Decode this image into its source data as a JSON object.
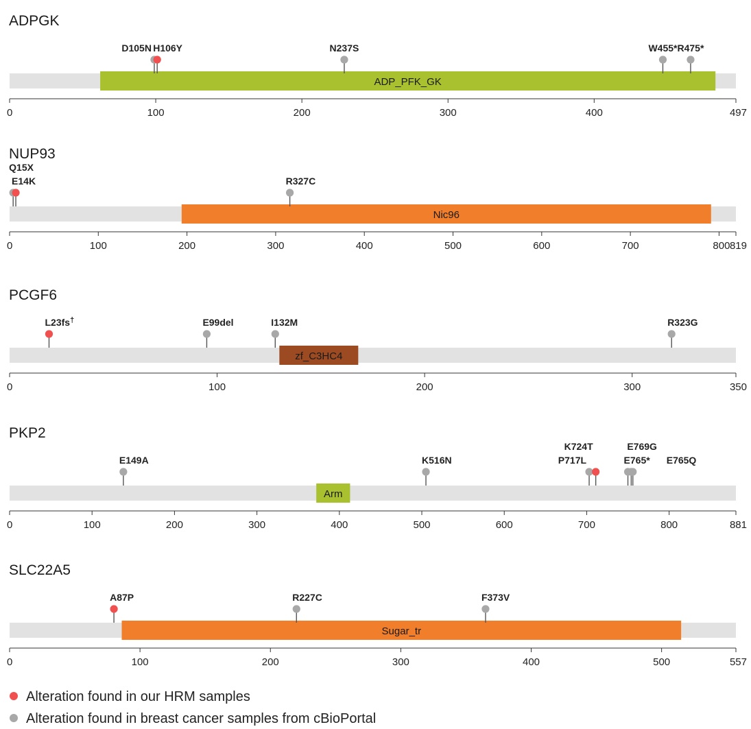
{
  "colors": {
    "hrm": "#f05050",
    "cbioportal": "#a8a8a8",
    "backbone": "#e2e2e2",
    "stem": "#555555",
    "axis": "#333333"
  },
  "genes": [
    {
      "name": "ADPGK",
      "length": 497,
      "ticks": [
        0,
        100,
        200,
        300,
        400,
        497
      ],
      "domains": [
        {
          "label": "ADP_PFK_GK",
          "start": 62,
          "end": 483,
          "color": "#a9c12f"
        }
      ],
      "mutations": [
        {
          "label": "D105N",
          "pos": 99,
          "source": "cbioportal",
          "row": 0,
          "anchor": "end"
        },
        {
          "label": "H106Y",
          "pos": 101,
          "source": "hrm",
          "row": 0,
          "anchor": "start"
        },
        {
          "label": "N237S",
          "pos": 229,
          "source": "cbioportal",
          "row": 0,
          "anchor": "middle"
        },
        {
          "label": "W455*",
          "pos": 447,
          "source": "cbioportal",
          "row": 0,
          "anchor": "middle"
        },
        {
          "label": "R475*",
          "pos": 466,
          "source": "cbioportal",
          "row": 0,
          "anchor": "middle"
        }
      ]
    },
    {
      "name": "NUP93",
      "length": 819,
      "ticks": [
        0,
        100,
        200,
        300,
        400,
        500,
        600,
        700,
        800,
        819
      ],
      "domains": [
        {
          "label": "Nic96",
          "start": 194,
          "end": 791,
          "color": "#f07e2a"
        }
      ],
      "mutations": [
        {
          "label": "Q15X",
          "pos": 4,
          "source": "cbioportal",
          "row": 1,
          "anchor": "start"
        },
        {
          "label": "E14K",
          "pos": 7,
          "source": "hrm",
          "row": 0,
          "anchor": "start"
        },
        {
          "label": "R327C",
          "pos": 316,
          "source": "cbioportal",
          "row": 0,
          "anchor": "start"
        }
      ]
    },
    {
      "name": "PCGF6",
      "length": 350,
      "ticks": [
        0,
        100,
        200,
        300,
        350
      ],
      "domains": [
        {
          "label": "zf_C3HC4",
          "start": 130,
          "end": 168,
          "color": "#9b4a22"
        }
      ],
      "mutations": [
        {
          "label": "L23fs",
          "pos": 19,
          "source": "hrm",
          "row": 0,
          "anchor": "start",
          "sup": "†"
        },
        {
          "label": "E99del",
          "pos": 95,
          "source": "cbioportal",
          "row": 0,
          "anchor": "start"
        },
        {
          "label": "I132M",
          "pos": 128,
          "source": "cbioportal",
          "row": 0,
          "anchor": "start"
        },
        {
          "label": "R323G",
          "pos": 319,
          "source": "cbioportal",
          "row": 0,
          "anchor": "start"
        }
      ]
    },
    {
      "name": "PKP2",
      "length": 881,
      "ticks": [
        0,
        100,
        200,
        300,
        400,
        500,
        600,
        700,
        800,
        881
      ],
      "domains": [
        {
          "label": "Arm",
          "start": 372,
          "end": 413,
          "color": "#a9c12f"
        }
      ],
      "mutations": [
        {
          "label": "E149A",
          "pos": 138,
          "source": "cbioportal",
          "row": 0,
          "anchor": "start"
        },
        {
          "label": "K516N",
          "pos": 505,
          "source": "cbioportal",
          "row": 0,
          "anchor": "start"
        },
        {
          "label": "P717L",
          "pos": 703,
          "source": "cbioportal",
          "row": 0,
          "anchor": "end"
        },
        {
          "label": "K724T",
          "pos": 711,
          "source": "hrm",
          "row": 1,
          "anchor": "end"
        },
        {
          "label": "E765*",
          "pos": 750,
          "source": "cbioportal",
          "row": 0,
          "anchor": "start"
        },
        {
          "label": "E769G",
          "pos": 754,
          "source": "cbioportal",
          "row": 1,
          "anchor": "start"
        },
        {
          "label": "E765Q",
          "pos": 756,
          "source": "cbioportal",
          "row": 0,
          "anchor": "start",
          "dx": 55
        }
      ]
    },
    {
      "name": "SLC22A5",
      "length": 557,
      "ticks": [
        0,
        100,
        200,
        300,
        400,
        500,
        557
      ],
      "domains": [
        {
          "label": "Sugar_tr",
          "start": 86,
          "end": 515,
          "color": "#f07e2a"
        }
      ],
      "mutations": [
        {
          "label": "A87P",
          "pos": 80,
          "source": "hrm",
          "row": 0,
          "anchor": "start"
        },
        {
          "label": "R227C",
          "pos": 220,
          "source": "cbioportal",
          "row": 0,
          "anchor": "start"
        },
        {
          "label": "F373V",
          "pos": 365,
          "source": "cbioportal",
          "row": 0,
          "anchor": "start"
        }
      ]
    }
  ],
  "legend": [
    {
      "label": "Alteration found in our HRM samples",
      "source": "hrm"
    },
    {
      "label": "Alteration found in breast cancer samples from cBioPortal",
      "source": "cbioportal"
    }
  ]
}
